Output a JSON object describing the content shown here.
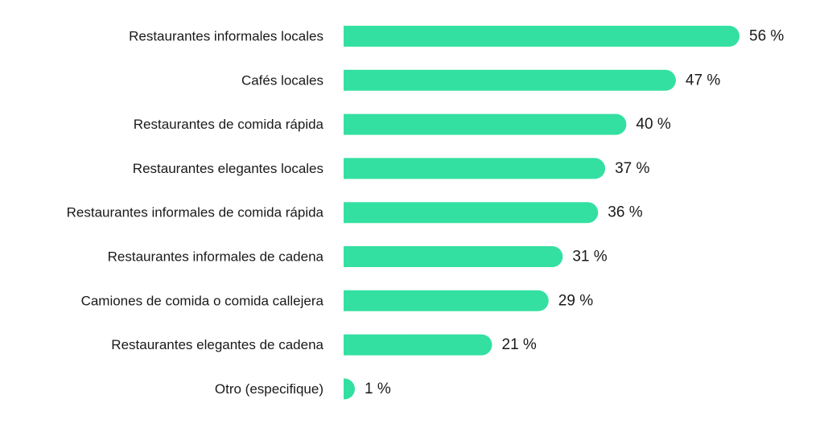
{
  "colors": {
    "bar": "#34E0A1",
    "text": "#1a1a1a",
    "background": "#ffffff"
  },
  "chart_data": {
    "type": "bar",
    "orientation": "horizontal",
    "categories": [
      "Restaurantes informales locales",
      "Cafés locales",
      "Restaurantes de comida rápida",
      "Restaurantes elegantes locales",
      "Restaurantes informales de comida rápida",
      "Restaurantes informales de cadena",
      "Camiones de comida o comida callejera",
      "Restaurantes elegantes de cadena",
      "Otro (especifique)"
    ],
    "values": [
      56,
      47,
      40,
      37,
      36,
      31,
      29,
      21,
      1
    ],
    "value_labels": [
      "56 %",
      "47 %",
      "40 %",
      "37 %",
      "36 %",
      "31 %",
      "29 %",
      "21 %",
      "1 %"
    ],
    "unit": "%",
    "xlim": [
      0,
      56
    ],
    "grid": false,
    "legend": "none"
  }
}
